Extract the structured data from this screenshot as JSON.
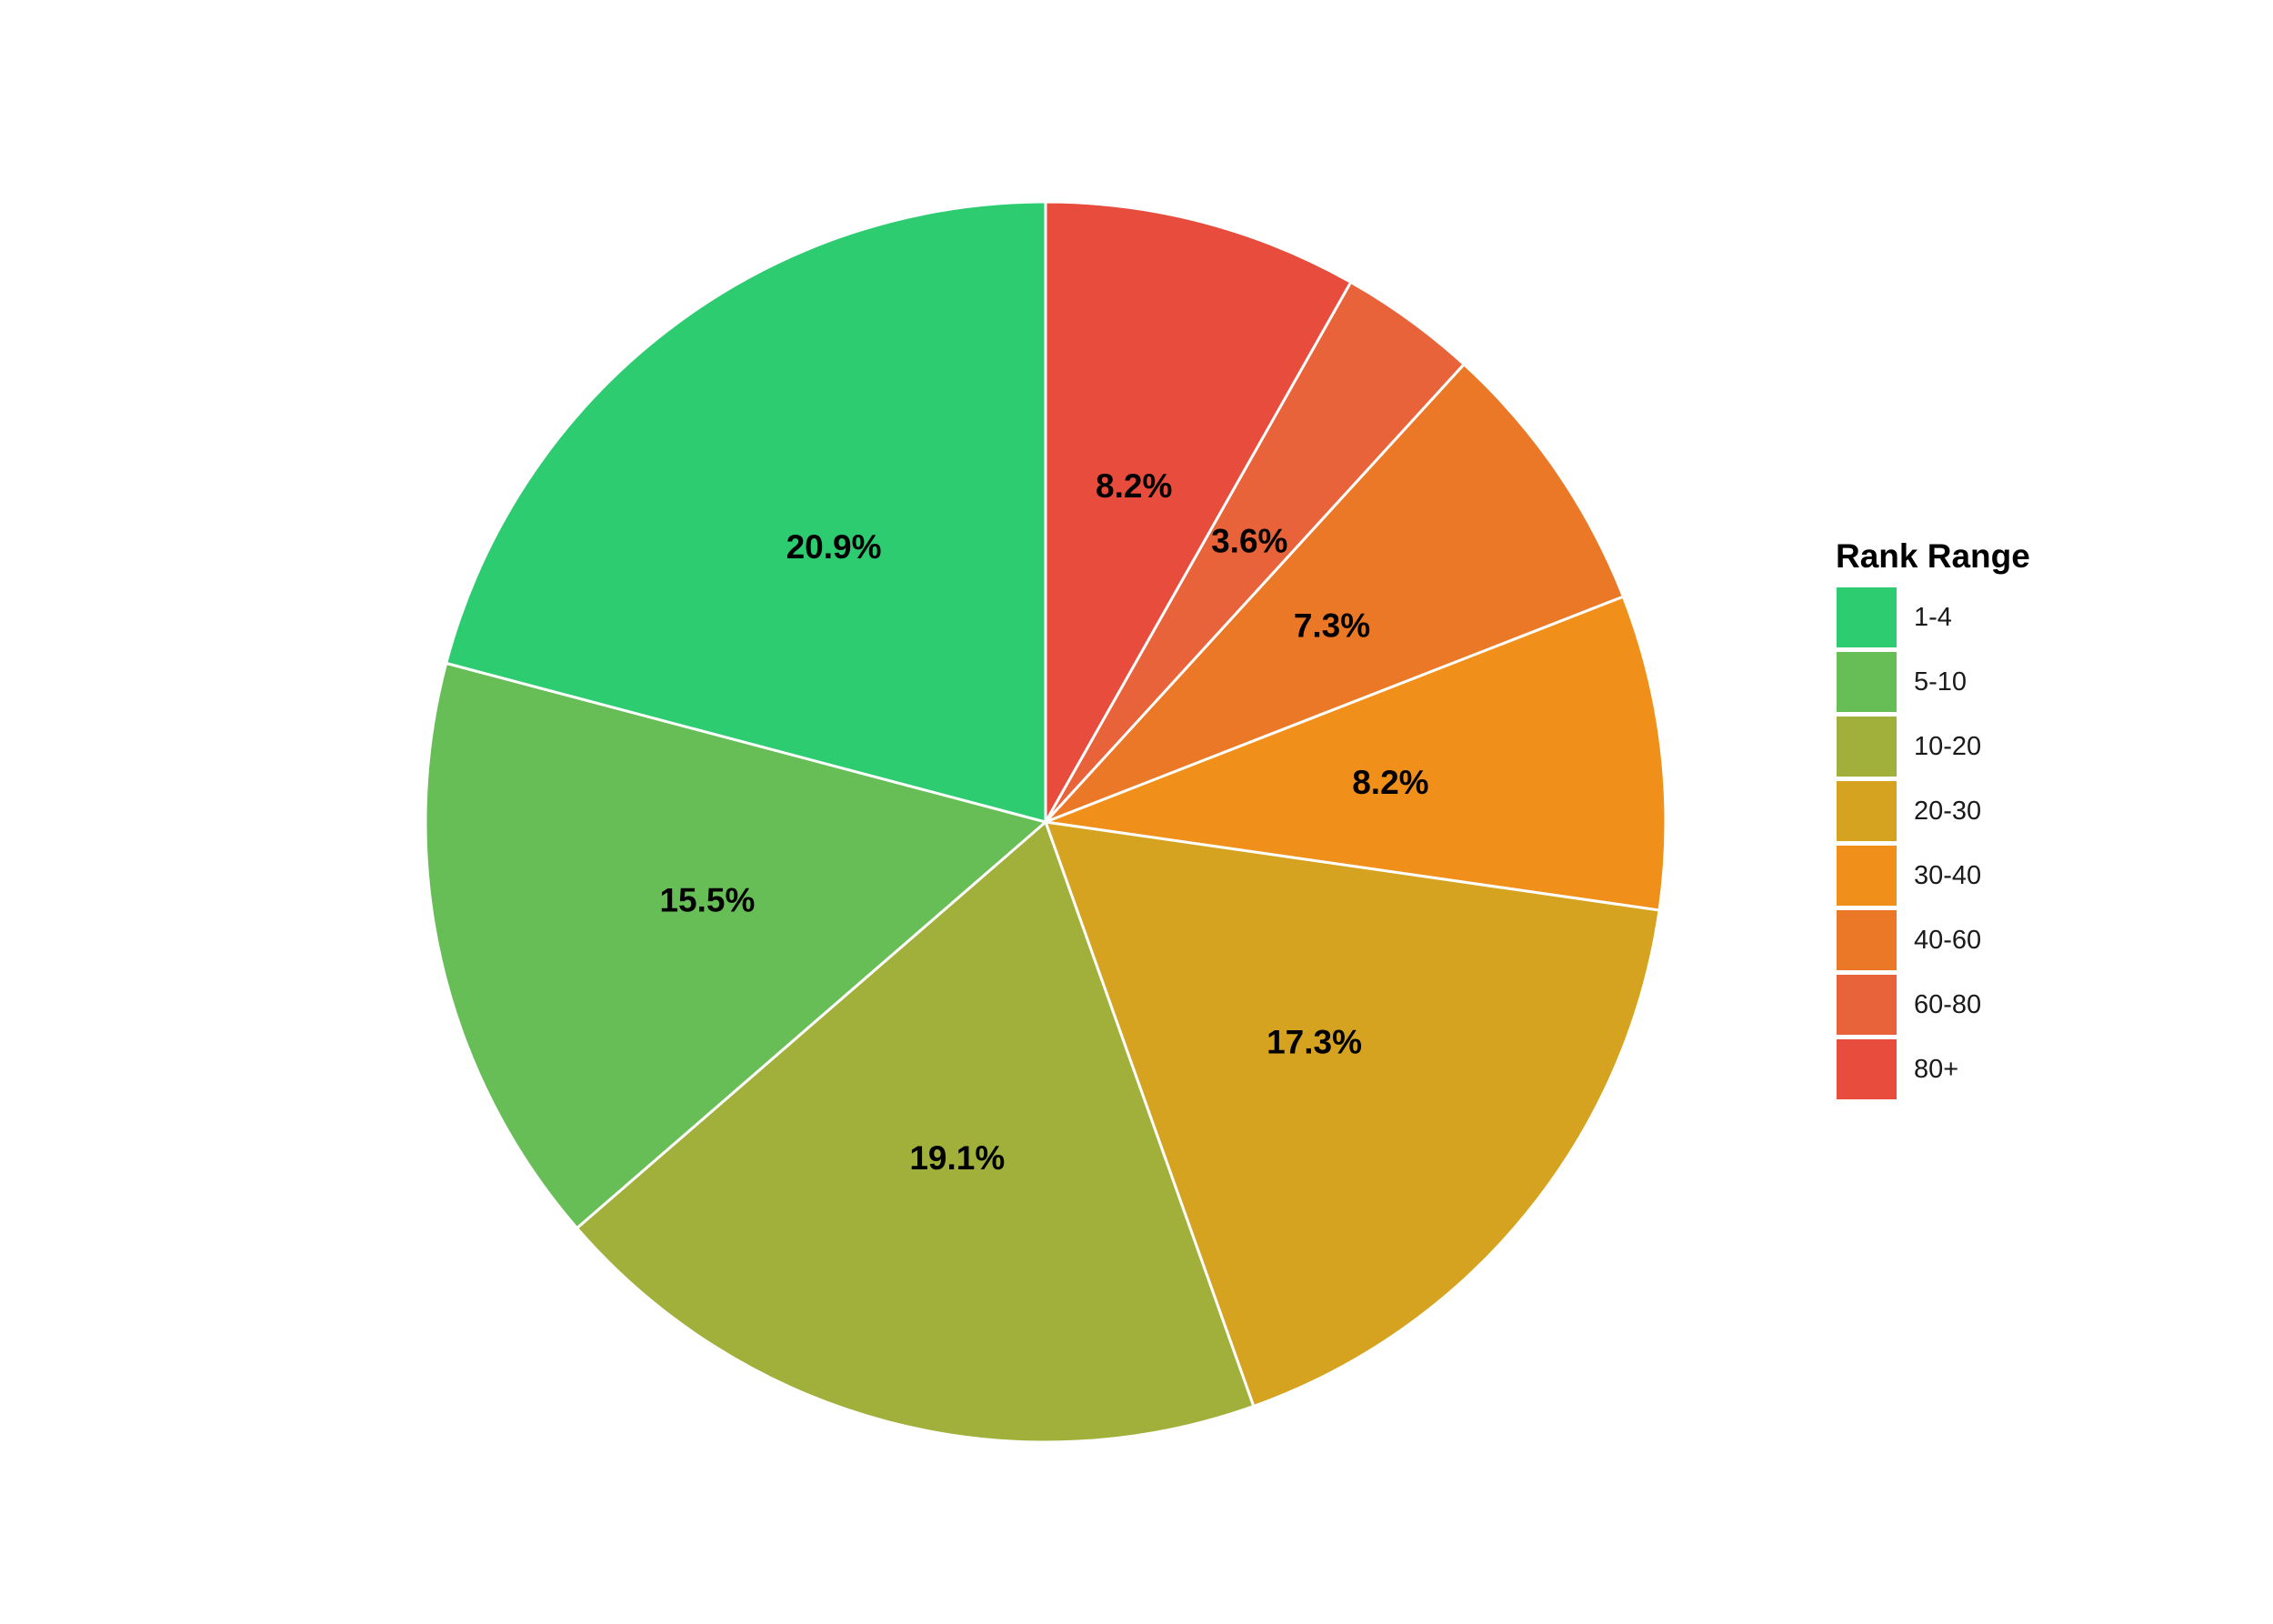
{
  "chart_data": {
    "type": "pie",
    "title": "",
    "legend": {
      "title": "Rank Range",
      "placement": "right"
    },
    "direction": "clockwise-from-top",
    "slices": [
      {
        "label": "80+",
        "value": 8.2,
        "display": "8.2%",
        "color": "#E74C3C"
      },
      {
        "label": "60-80",
        "value": 3.6,
        "display": "3.6%",
        "color": "#E8623A"
      },
      {
        "label": "40-60",
        "value": 7.3,
        "display": "7.3%",
        "color": "#EB7826"
      },
      {
        "label": "30-40",
        "value": 8.2,
        "display": "8.2%",
        "color": "#F0901A"
      },
      {
        "label": "20-30",
        "value": 17.3,
        "display": "17.3%",
        "color": "#D5A320"
      },
      {
        "label": "10-20",
        "value": 19.1,
        "display": "19.1%",
        "color": "#A0B03A"
      },
      {
        "label": "5-10",
        "value": 15.5,
        "display": "15.5%",
        "color": "#67BE56"
      },
      {
        "label": "1-4",
        "value": 20.9,
        "display": "20.9%",
        "color": "#2ECC71"
      }
    ],
    "legend_order": [
      "1-4",
      "5-10",
      "10-20",
      "20-30",
      "30-40",
      "40-60",
      "60-80",
      "80+"
    ]
  }
}
